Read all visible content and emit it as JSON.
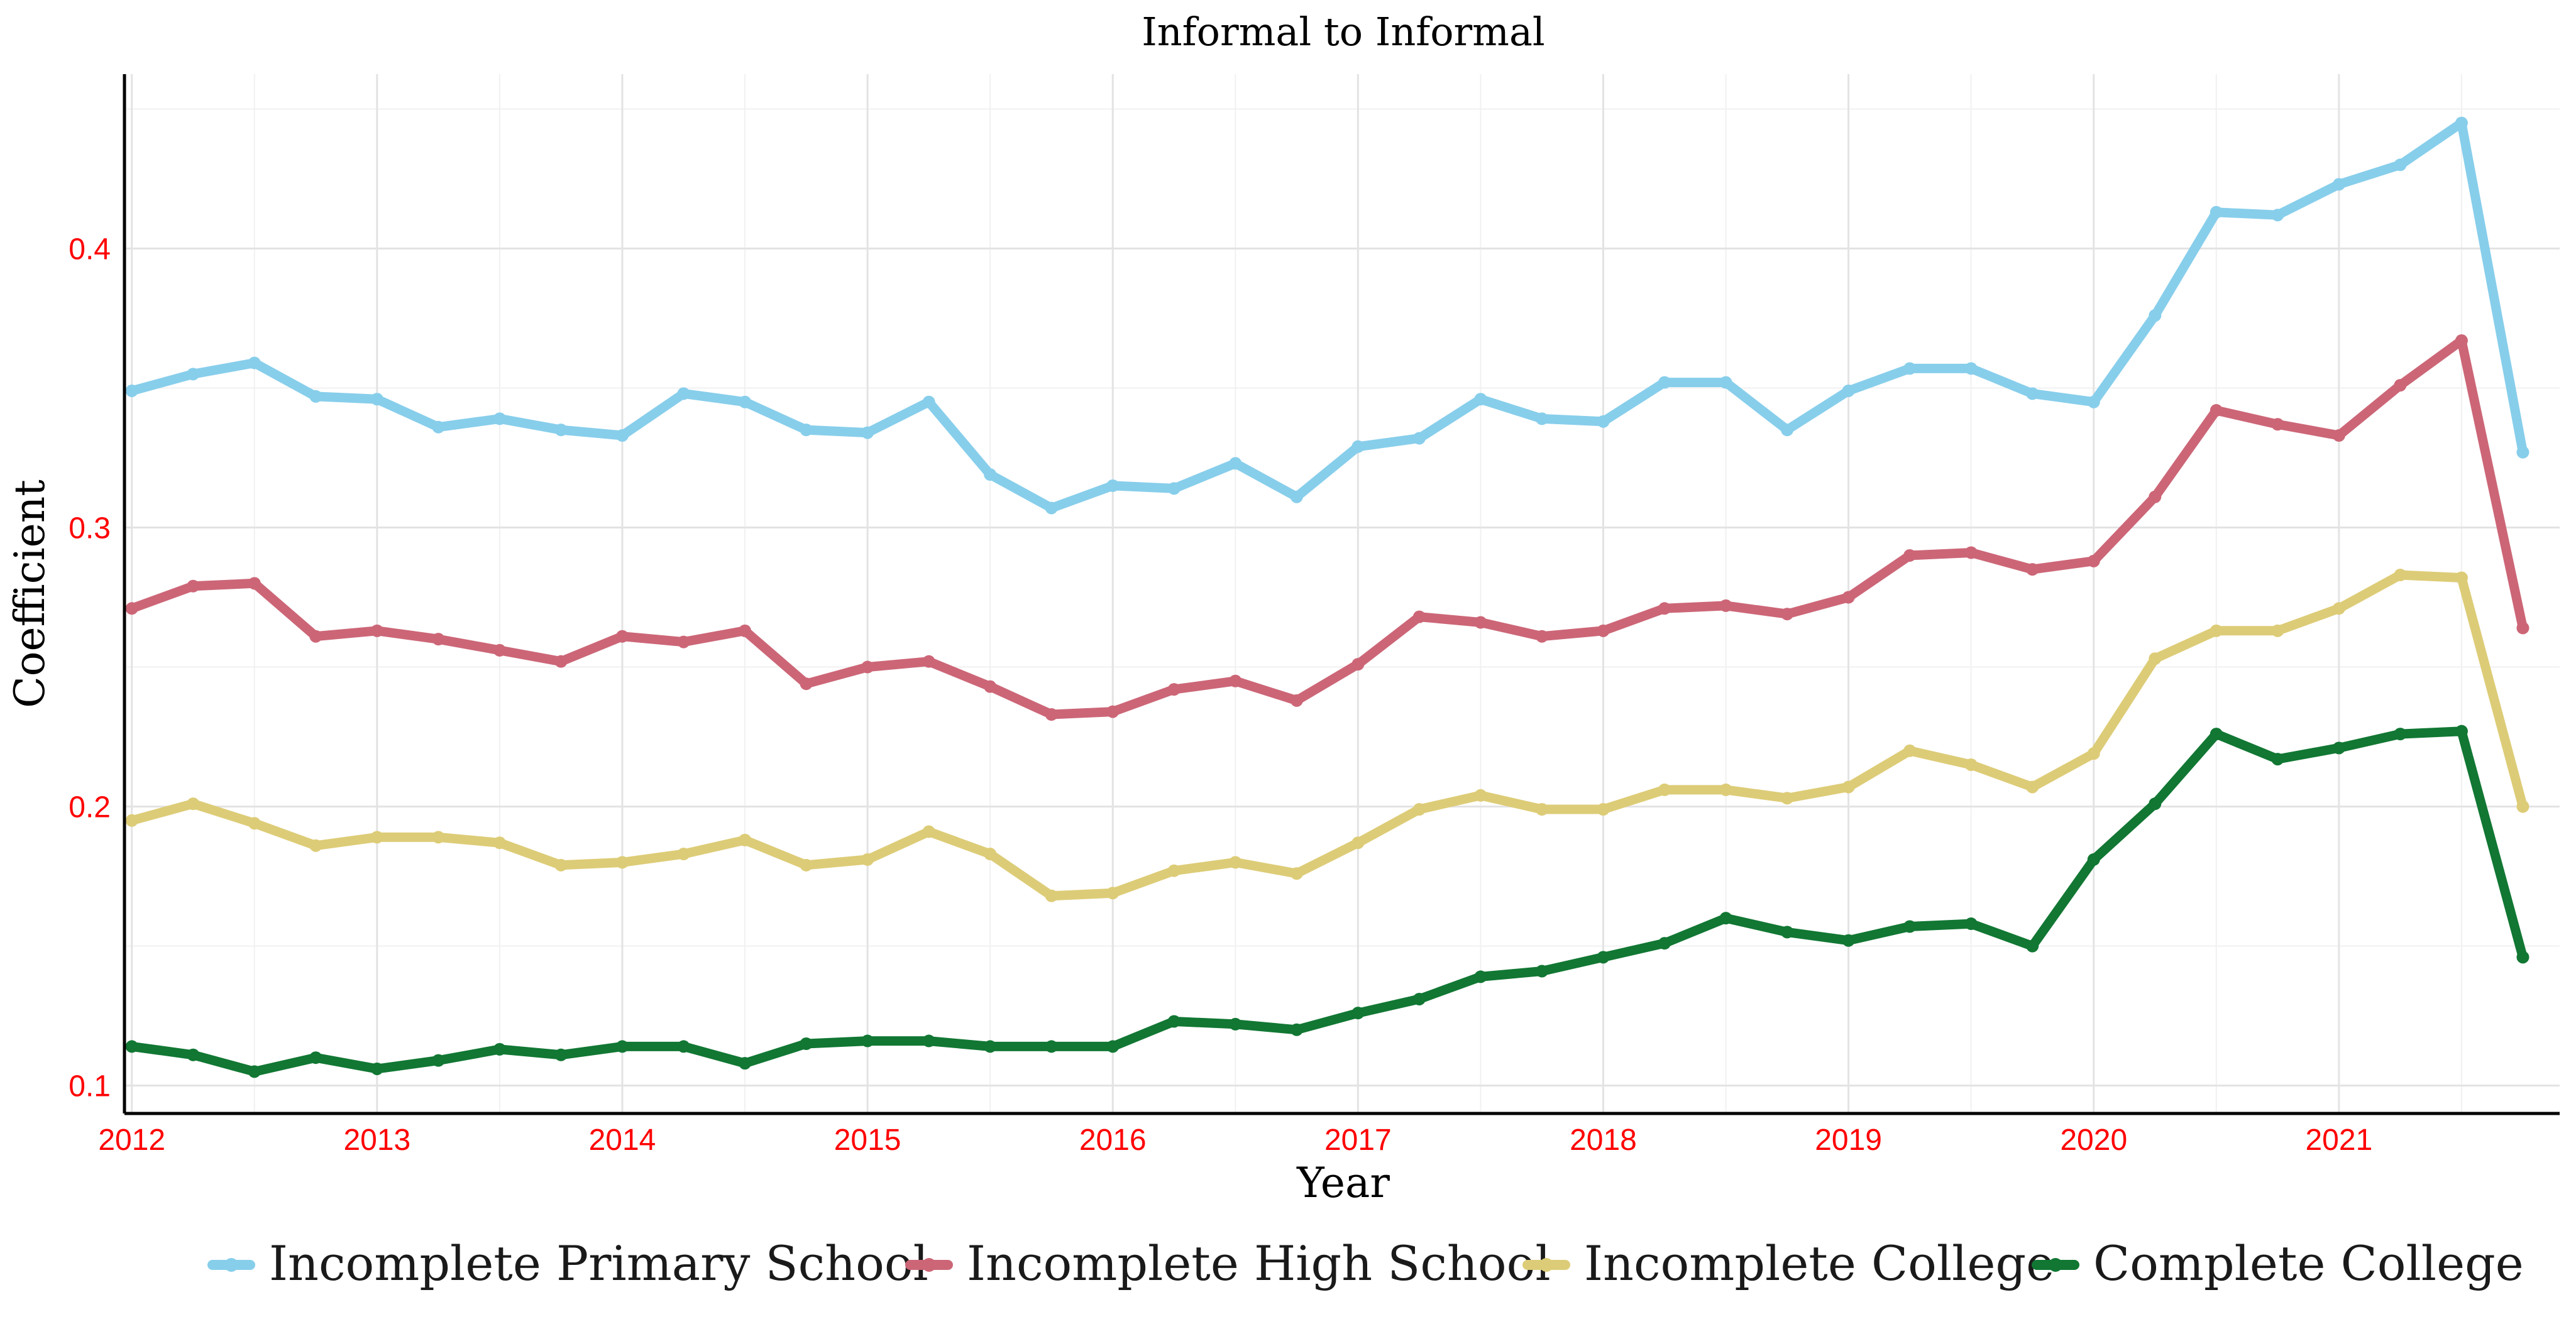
{
  "chart_data": {
    "type": "line",
    "title": "Informal to Informal",
    "xlabel": "Year",
    "ylabel": "Coefficient",
    "xlim": [
      2011.97,
      2021.9
    ],
    "ylim": [
      0.09,
      0.4625
    ],
    "x_ticks": [
      2012,
      2013,
      2014,
      2015,
      2016,
      2017,
      2018,
      2019,
      2020,
      2021
    ],
    "x_minor_ticks": [
      2012.5,
      2013.5,
      2014.5,
      2015.5,
      2016.5,
      2017.5,
      2018.5,
      2019.5,
      2020.5,
      2021.5
    ],
    "y_ticks": [
      0.1,
      0.2,
      0.3,
      0.4
    ],
    "y_tick_labels": [
      "0.1",
      "0.2",
      "0.3",
      "0.4"
    ],
    "y_minor_ticks": [
      0.15,
      0.25,
      0.35,
      0.45
    ],
    "grid": true,
    "legend_position": "bottom",
    "x": [
      2012.0,
      2012.25,
      2012.5,
      2012.75,
      2013.0,
      2013.25,
      2013.5,
      2013.75,
      2014.0,
      2014.25,
      2014.5,
      2014.75,
      2015.0,
      2015.25,
      2015.5,
      2015.75,
      2016.0,
      2016.25,
      2016.5,
      2016.75,
      2017.0,
      2017.25,
      2017.5,
      2017.75,
      2018.0,
      2018.25,
      2018.5,
      2018.75,
      2019.0,
      2019.25,
      2019.5,
      2019.75,
      2020.0,
      2020.25,
      2020.5,
      2020.75,
      2021.0,
      2021.25,
      2021.5,
      2021.75
    ],
    "series": [
      {
        "name": "Incomplete Primary School",
        "color": "#87CEEB",
        "values": [
          0.349,
          0.355,
          0.359,
          0.347,
          0.346,
          0.336,
          0.339,
          0.335,
          0.333,
          0.348,
          0.345,
          0.335,
          0.334,
          0.345,
          0.319,
          0.307,
          0.315,
          0.314,
          0.323,
          0.311,
          0.329,
          0.332,
          0.346,
          0.339,
          0.338,
          0.352,
          0.352,
          0.335,
          0.349,
          0.357,
          0.357,
          0.348,
          0.345,
          0.376,
          0.413,
          0.412,
          0.423,
          0.43,
          0.445,
          0.327
        ]
      },
      {
        "name": "Incomplete High School",
        "color": "#CC6677",
        "values": [
          0.271,
          0.279,
          0.28,
          0.261,
          0.263,
          0.26,
          0.256,
          0.252,
          0.261,
          0.259,
          0.263,
          0.244,
          0.25,
          0.252,
          0.243,
          0.233,
          0.234,
          0.242,
          0.245,
          0.238,
          0.251,
          0.268,
          0.266,
          0.261,
          0.263,
          0.271,
          0.272,
          0.269,
          0.275,
          0.29,
          0.291,
          0.285,
          0.288,
          0.311,
          0.342,
          0.337,
          0.333,
          0.351,
          0.367,
          0.264
        ]
      },
      {
        "name": "Incomplete College",
        "color": "#DDCC77",
        "values": [
          0.195,
          0.201,
          0.194,
          0.186,
          0.189,
          0.189,
          0.187,
          0.179,
          0.18,
          0.183,
          0.188,
          0.179,
          0.181,
          0.191,
          0.183,
          0.168,
          0.169,
          0.177,
          0.18,
          0.176,
          0.187,
          0.199,
          0.204,
          0.199,
          0.199,
          0.206,
          0.206,
          0.203,
          0.207,
          0.22,
          0.215,
          0.207,
          0.219,
          0.253,
          0.263,
          0.263,
          0.271,
          0.283,
          0.282,
          0.2
        ]
      },
      {
        "name": "Complete College",
        "color": "#117733",
        "values": [
          0.114,
          0.111,
          0.105,
          0.11,
          0.106,
          0.109,
          0.113,
          0.111,
          0.114,
          0.114,
          0.108,
          0.115,
          0.116,
          0.116,
          0.114,
          0.114,
          0.114,
          0.123,
          0.122,
          0.12,
          0.126,
          0.131,
          0.139,
          0.141,
          0.146,
          0.151,
          0.16,
          0.155,
          0.152,
          0.157,
          0.158,
          0.15,
          0.181,
          0.201,
          0.226,
          0.217,
          0.221,
          0.226,
          0.227,
          0.146
        ]
      }
    ]
  }
}
